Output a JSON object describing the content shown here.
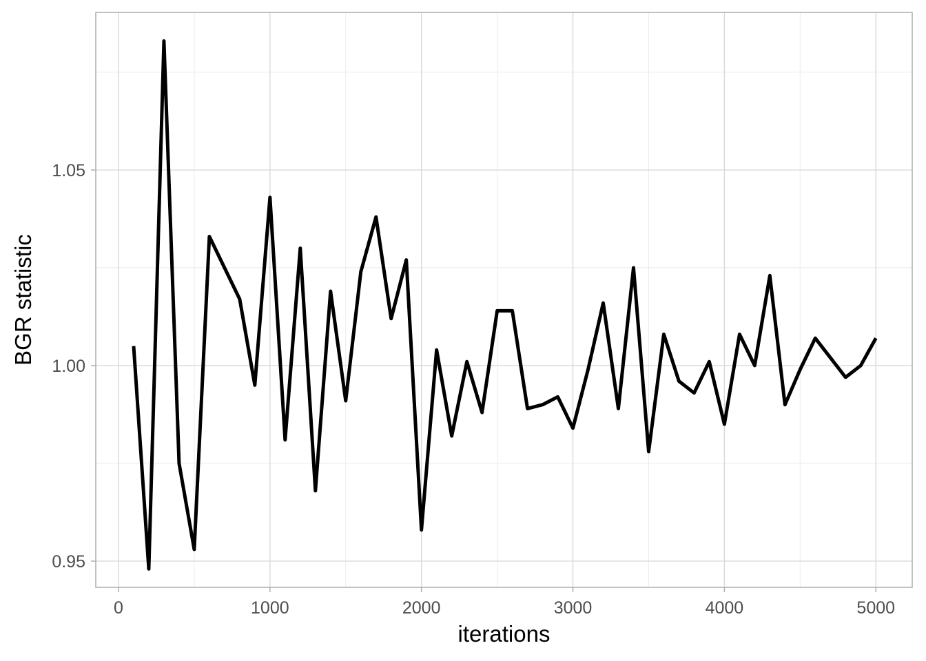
{
  "chart_data": {
    "type": "line",
    "title": "",
    "xlabel": "iterations",
    "ylabel": "BGR statistic",
    "xlim": [
      -150,
      5240
    ],
    "ylim": [
      0.9433,
      1.0903
    ],
    "x_ticks": [
      0,
      1000,
      2000,
      3000,
      4000,
      5000
    ],
    "x_tick_labels": [
      "0",
      "1000",
      "2000",
      "3000",
      "4000",
      "5000"
    ],
    "y_ticks": [
      0.95,
      1.0,
      1.05
    ],
    "y_tick_labels": [
      "0.95",
      "1.00",
      "1.05"
    ],
    "x_minor_ticks": [
      500,
      1500,
      2500,
      3500,
      4500
    ],
    "y_minor_ticks": [
      0.975,
      1.025,
      1.075
    ],
    "grid": true,
    "legend": "none",
    "colors": {
      "line": "#000000",
      "grid_major": "#d9d9d9",
      "grid_minor": "#ebebeb",
      "border": "#b3b3b3"
    },
    "series": [
      {
        "x": [
          100,
          200,
          300,
          400,
          500,
          600,
          700,
          800,
          900,
          1000,
          1100,
          1200,
          1300,
          1400,
          1500,
          1600,
          1700,
          1800,
          1900,
          2000,
          2100,
          2200,
          2300,
          2400,
          2500,
          2600,
          2700,
          2800,
          2900,
          3000,
          3100,
          3200,
          3300,
          3400,
          3500,
          3600,
          3700,
          3800,
          3900,
          4000,
          4100,
          4200,
          4300,
          4400,
          4500,
          4600,
          4700,
          4800,
          4900,
          5000
        ],
        "values": [
          1.005,
          0.948,
          1.083,
          0.975,
          0.953,
          1.033,
          1.025,
          1.017,
          0.995,
          1.043,
          0.981,
          1.03,
          0.968,
          1.019,
          0.991,
          1.024,
          1.038,
          1.012,
          1.027,
          0.958,
          1.004,
          0.982,
          1.001,
          0.988,
          1.014,
          1.014,
          0.989,
          0.99,
          0.992,
          0.984,
          0.999,
          1.016,
          0.989,
          1.025,
          0.978,
          1.008,
          0.996,
          0.993,
          1.001,
          0.985,
          1.008,
          1.0,
          1.023,
          0.99,
          0.999,
          1.007,
          1.002,
          0.997,
          1.0,
          1.007
        ]
      }
    ]
  }
}
